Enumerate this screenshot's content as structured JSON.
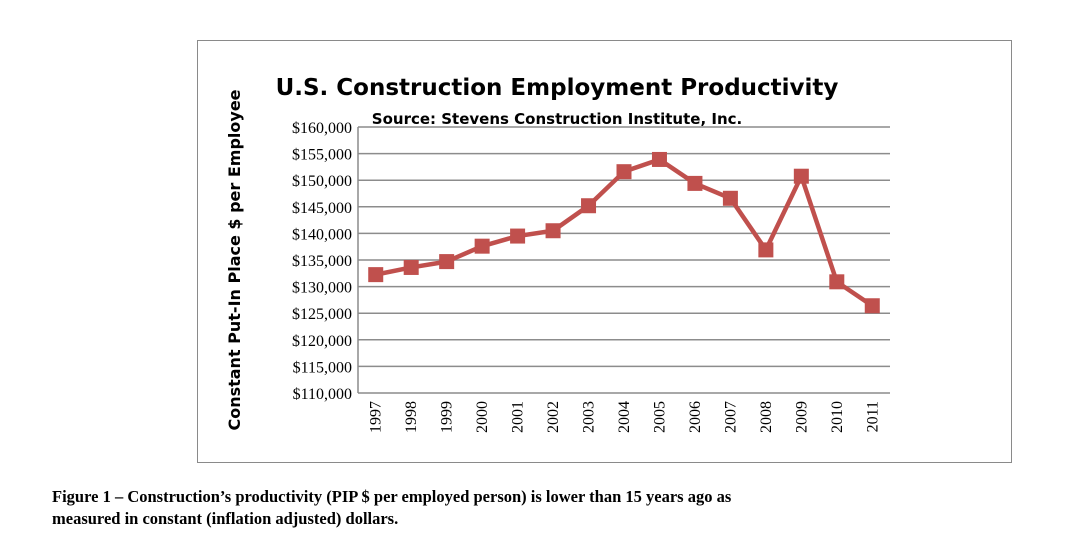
{
  "chart_data": {
    "type": "line",
    "title": "U.S. Construction Employment Productivity",
    "subtitle": "Source: Stevens Construction Institute, Inc.",
    "xlabel": "",
    "ylabel": "Constant Put-In Place $ per Employee",
    "categories": [
      "1997",
      "1998",
      "1999",
      "2000",
      "2001",
      "2002",
      "2003",
      "2004",
      "2005",
      "2006",
      "2007",
      "2008",
      "2009",
      "2010",
      "2011"
    ],
    "values": [
      132250,
      133600,
      134700,
      137600,
      139500,
      140500,
      145200,
      151600,
      153900,
      149400,
      146600,
      136900,
      150750,
      130900,
      126400
    ],
    "ylim": [
      110000,
      160000
    ],
    "ytick_step": 5000,
    "yticks": [
      "$110,000",
      "$115,000",
      "$120,000",
      "$125,000",
      "$130,000",
      "$135,000",
      "$140,000",
      "$145,000",
      "$150,000",
      "$155,000",
      "$160,000"
    ],
    "grid": true,
    "legend": "none",
    "marker": "square",
    "series_color": "#c0504d"
  },
  "caption": {
    "line1": "Figure 1 – Construction’s productivity (PIP $ per employed person) is lower than 15 years ago as",
    "line2": "measured in constant (inflation adjusted) dollars."
  }
}
